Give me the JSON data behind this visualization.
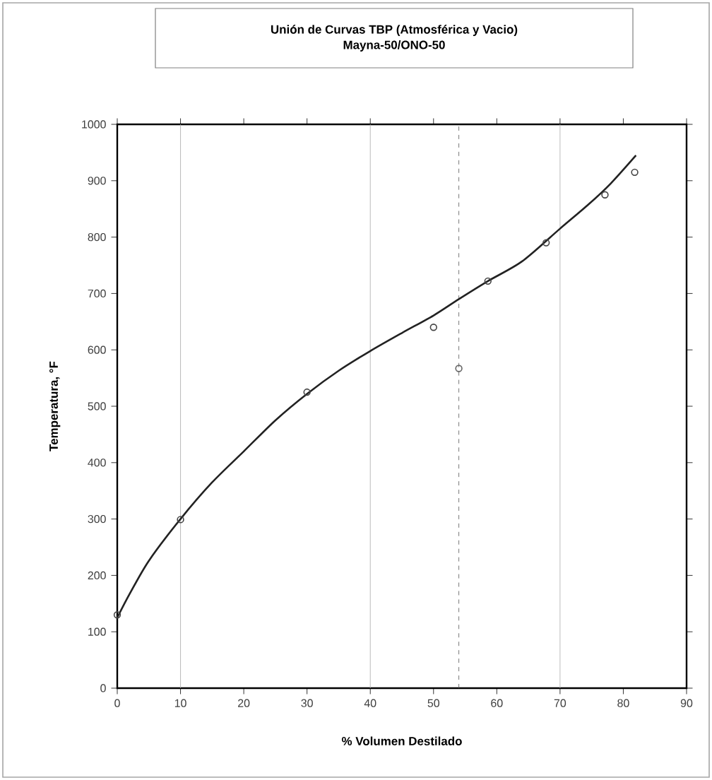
{
  "chart_data": {
    "type": "scatter",
    "title": "Unión de Curvas TBP (Atmosférica y Vacio)",
    "subtitle": "Mayna-50/ONO-50",
    "xlabel": "% Volumen Destilado",
    "ylabel": "Temperatura, °F",
    "series": [
      {
        "type": "line",
        "color": "#222222",
        "marker": "none",
        "x": [
          0,
          2,
          5,
          10,
          15,
          20,
          25,
          30,
          35,
          40,
          45,
          50,
          54,
          58.6,
          64,
          70,
          74.5,
          78,
          82
        ],
        "values": [
          125,
          168,
          226,
          300,
          365,
          420,
          475,
          522,
          563,
          598,
          630,
          661,
          690,
          722,
          757,
          815,
          858,
          895,
          945
        ]
      },
      {
        "color": "#444444",
        "marker": "circle",
        "x": [
          0,
          10,
          30,
          50,
          58.6,
          67.8,
          77.1,
          81.8
        ],
        "values": [
          130,
          299,
          525,
          640,
          722,
          790,
          875,
          915
        ]
      },
      {
        "color": "#666666",
        "marker": "circle",
        "x": [
          54
        ],
        "values": [
          567
        ]
      }
    ],
    "xlim": [
      0,
      90
    ],
    "ylim": [
      0,
      1000
    ],
    "xticks": [
      0,
      10,
      20,
      30,
      40,
      50,
      60,
      70,
      80,
      90
    ],
    "yticks": [
      0,
      100,
      200,
      300,
      400,
      500,
      600,
      700,
      800,
      900,
      1000
    ],
    "ref_lines": [
      {
        "axis": "x",
        "value": 10,
        "color": "#aaaaaa",
        "line_style": "solid"
      },
      {
        "axis": "x",
        "value": 40,
        "color": "#aaaaaa",
        "line_style": "solid"
      },
      {
        "axis": "x",
        "value": 54,
        "color": "#555555",
        "line_style": "dashed"
      },
      {
        "axis": "x",
        "value": 70,
        "color": "#aaaaaa",
        "line_style": "solid"
      }
    ]
  }
}
